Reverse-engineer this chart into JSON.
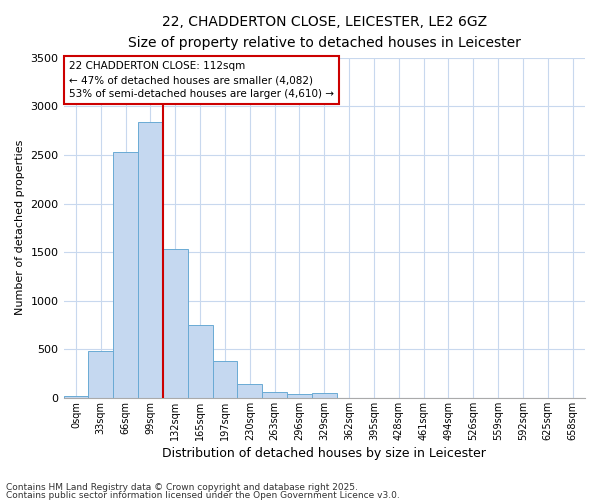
{
  "title_line1": "22, CHADDERTON CLOSE, LEICESTER, LE2 6GZ",
  "title_line2": "Size of property relative to detached houses in Leicester",
  "xlabel": "Distribution of detached houses by size in Leicester",
  "ylabel": "Number of detached properties",
  "bar_color": "#c5d8f0",
  "bar_edge_color": "#6aaad4",
  "fig_background_color": "#ffffff",
  "plot_background_color": "#ffffff",
  "grid_color": "#c8d8ee",
  "vline_color": "#cc0000",
  "vline_x_index": 3.5,
  "categories": [
    "0sqm",
    "33sqm",
    "66sqm",
    "99sqm",
    "132sqm",
    "165sqm",
    "197sqm",
    "230sqm",
    "263sqm",
    "296sqm",
    "329sqm",
    "362sqm",
    "395sqm",
    "428sqm",
    "461sqm",
    "494sqm",
    "526sqm",
    "559sqm",
    "592sqm",
    "625sqm",
    "658sqm"
  ],
  "values": [
    20,
    480,
    2530,
    2840,
    1530,
    750,
    380,
    145,
    60,
    45,
    50,
    0,
    0,
    0,
    0,
    0,
    0,
    0,
    0,
    0,
    0
  ],
  "ylim": [
    0,
    3500
  ],
  "yticks": [
    0,
    500,
    1000,
    1500,
    2000,
    2500,
    3000,
    3500
  ],
  "annotation_title": "22 CHADDERTON CLOSE: 112sqm",
  "annotation_line1": "← 47% of detached houses are smaller (4,082)",
  "annotation_line2": "53% of semi-detached houses are larger (4,610) →",
  "annotation_box_color": "#ffffff",
  "annotation_box_edge": "#cc0000",
  "footer_line1": "Contains HM Land Registry data © Crown copyright and database right 2025.",
  "footer_line2": "Contains public sector information licensed under the Open Government Licence v3.0."
}
